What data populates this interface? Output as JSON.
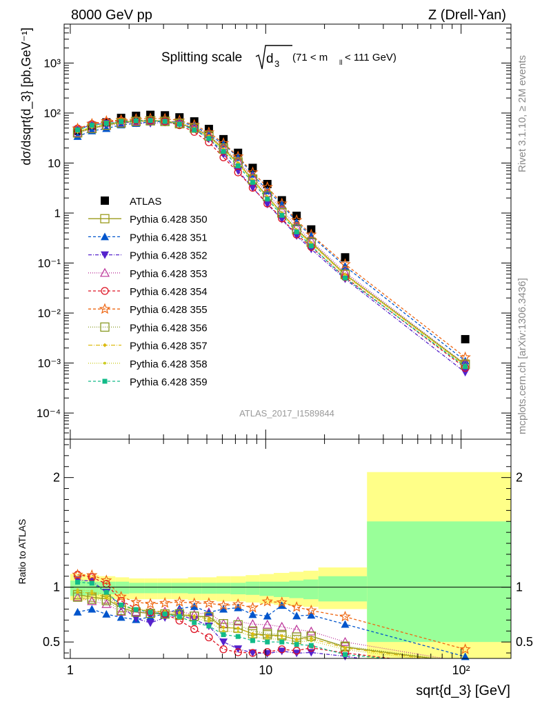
{
  "header": {
    "left": "8000 GeV pp",
    "right": "Z (Drell-Yan)"
  },
  "side_labels": {
    "rivet": "Rivet 3.1.10, ≥ 2M events",
    "mcplots": "mcplots.cern.ch [arXiv:1306.3436]"
  },
  "main_title": {
    "prefix": "Splitting scale",
    "var": "d",
    "sub": "3",
    "cut": "(71 < m",
    "cut_sub": "ll",
    "cut_end": " < 111 GeV)"
  },
  "watermark": "ATLAS_2017_I1589844",
  "colors": {
    "band_inner": "#99ff99",
    "band_outer": "#ffff88"
  },
  "chart_data": [
    {
      "type": "scatter",
      "xlabel": "sqrt{d_3} [GeV]",
      "ylabel": "dσ/dsqrt{d_3} [pb,GeV⁻¹]",
      "xscale": "log",
      "yscale": "log",
      "xlim": [
        0.93,
        180
      ],
      "ylim": [
        3e-05,
        6000
      ],
      "x_ticks": [
        "1",
        "10",
        "10²"
      ],
      "y_ticks": [
        "10⁻⁴",
        "10⁻³",
        "10⁻²",
        "10⁻¹",
        "1",
        "10",
        "10²",
        "10³"
      ],
      "legend_position": "left",
      "x": [
        1.09,
        1.29,
        1.53,
        1.82,
        2.17,
        2.57,
        3.05,
        3.62,
        4.31,
        5.12,
        6.08,
        7.22,
        8.58,
        10.2,
        12.1,
        14.4,
        17.1,
        25.5,
        105
      ],
      "series": [
        {
          "name": "ATLAS",
          "color": "#000000",
          "marker": "square-filled",
          "dash": "none",
          "values": [
            44,
            55,
            65,
            80,
            88,
            92,
            90,
            82,
            68,
            48,
            30,
            16,
            8,
            3.8,
            1.8,
            0.88,
            0.47,
            0.13,
            0.003
          ]
        },
        {
          "name": "Pythia 6.428 350",
          "color": "#9a9a1a",
          "marker": "square-open",
          "dash": "solid",
          "values": [
            41,
            50,
            58,
            65,
            68,
            70,
            68,
            61,
            50,
            35,
            19,
            10,
            4.6,
            2.15,
            1.0,
            0.46,
            0.26,
            0.059,
            0.00093
          ]
        },
        {
          "name": "Pythia 6.428 351",
          "color": "#0055cc",
          "marker": "triangle-up-filled",
          "dash": "4,3",
          "values": [
            34,
            44,
            49,
            58,
            62,
            67,
            68,
            66,
            56,
            37,
            24,
            13,
            6,
            2.8,
            1.5,
            0.65,
            0.35,
            0.086,
            0.0011
          ]
        },
        {
          "name": "Pythia 6.428 352",
          "color": "#5522cc",
          "marker": "triangle-down-filled",
          "dash": "5,2,1,2",
          "values": [
            47,
            58,
            62,
            66,
            63,
            62,
            65,
            61,
            48,
            31,
            15,
            7,
            3.2,
            1.5,
            0.75,
            0.35,
            0.19,
            0.048,
            0.00065
          ]
        },
        {
          "name": "Pythia 6.428 353",
          "color": "#bb3399",
          "marker": "triangle-up-open",
          "dash": "1,2",
          "values": [
            40,
            48,
            55,
            62,
            68,
            71,
            70,
            64,
            51,
            37,
            20,
            11,
            5.3,
            2.5,
            1.15,
            0.54,
            0.28,
            0.065,
            0.00095
          ]
        },
        {
          "name": "Pythia 6.428 354",
          "color": "#dd1122",
          "marker": "circle-open",
          "dash": "4,3",
          "values": [
            49,
            60,
            67,
            70,
            71,
            71,
            68,
            57,
            42,
            26,
            13,
            6.5,
            3.2,
            1.55,
            0.78,
            0.37,
            0.21,
            0.052,
            0.0008
          ]
        },
        {
          "name": "Pythia 6.428 355",
          "color": "#ee6611",
          "marker": "star-open",
          "dash": "4,3",
          "values": [
            49,
            61,
            69,
            73,
            76,
            78,
            77,
            71,
            58,
            41,
            25,
            13.5,
            6.5,
            3.3,
            1.55,
            0.72,
            0.37,
            0.095,
            0.0013
          ]
        },
        {
          "name": "Pythia 6.428 356",
          "color": "#889922",
          "marker": "square-open",
          "dash": "1,2",
          "values": [
            40,
            49,
            57,
            63,
            68,
            70,
            68,
            62,
            50,
            35,
            20,
            10.5,
            4.8,
            2.2,
            1.02,
            0.48,
            0.26,
            0.06,
            0.00095
          ]
        },
        {
          "name": "Pythia 6.428 357",
          "color": "#ddbb11",
          "marker": "diamond-small",
          "dash": "6,2,1,2",
          "values": [
            42,
            52,
            59,
            66,
            70,
            72,
            70,
            63,
            50,
            34,
            19,
            10,
            4.6,
            2.1,
            1.0,
            0.46,
            0.25,
            0.058,
            0.0009
          ]
        },
        {
          "name": "Pythia 6.428 358",
          "color": "#cccc22",
          "marker": "dot-small",
          "dash": "1,2",
          "values": [
            43,
            53,
            60,
            67,
            71,
            72,
            69,
            62,
            49,
            33,
            18,
            9.5,
            4.4,
            2.0,
            0.95,
            0.44,
            0.24,
            0.056,
            0.00088
          ]
        },
        {
          "name": "Pythia 6.428 359",
          "color": "#11bb88",
          "marker": "square-filled-small",
          "dash": "4,3",
          "values": [
            46,
            57,
            62,
            67,
            70,
            71,
            68,
            60,
            46,
            31,
            17,
            8.8,
            4.1,
            1.9,
            0.9,
            0.42,
            0.22,
            0.05,
            0.00085
          ]
        }
      ]
    },
    {
      "type": "scatter",
      "xlabel": "sqrt{d_3} [GeV]",
      "ylabel": "Ratio to ATLAS",
      "xscale": "log",
      "xlim": [
        0.93,
        180
      ],
      "ylim": [
        0.35,
        2.35
      ],
      "y_ticks": [
        "0.5",
        "1",
        "2"
      ],
      "reference_line": 1,
      "band_edges": [
        1,
        1.2,
        1.4,
        1.7,
        2,
        2.4,
        2.8,
        3.3,
        4,
        4.7,
        5.6,
        6.6,
        7.9,
        9.3,
        11,
        13.2,
        15.6,
        18.6,
        33,
        180
      ],
      "band_inner": [
        [
          0.92,
          1.06
        ],
        [
          0.93,
          1.05
        ],
        [
          0.935,
          1.05
        ],
        [
          0.94,
          1.05
        ],
        [
          0.945,
          1.04
        ],
        [
          0.945,
          1.04
        ],
        [
          0.945,
          1.04
        ],
        [
          0.945,
          1.04
        ],
        [
          0.94,
          1.04
        ],
        [
          0.94,
          1.04
        ],
        [
          0.94,
          1.04
        ],
        [
          0.935,
          1.04
        ],
        [
          0.93,
          1.05
        ],
        [
          0.92,
          1.05
        ],
        [
          0.91,
          1.05
        ],
        [
          0.9,
          1.06
        ],
        [
          0.89,
          1.07
        ],
        [
          0.87,
          1.1
        ],
        [
          0.5,
          1.6
        ]
      ],
      "band_outer": [
        [
          0.88,
          1.12
        ],
        [
          0.89,
          1.11
        ],
        [
          0.89,
          1.1
        ],
        [
          0.89,
          1.09
        ],
        [
          0.89,
          1.08
        ],
        [
          0.89,
          1.08
        ],
        [
          0.89,
          1.08
        ],
        [
          0.89,
          1.08
        ],
        [
          0.88,
          1.09
        ],
        [
          0.88,
          1.09
        ],
        [
          0.87,
          1.1
        ],
        [
          0.87,
          1.1
        ],
        [
          0.86,
          1.11
        ],
        [
          0.85,
          1.12
        ],
        [
          0.84,
          1.13
        ],
        [
          0.83,
          1.14
        ],
        [
          0.82,
          1.15
        ],
        [
          0.8,
          1.18
        ],
        [
          0.33,
          2.05
        ]
      ]
    }
  ]
}
